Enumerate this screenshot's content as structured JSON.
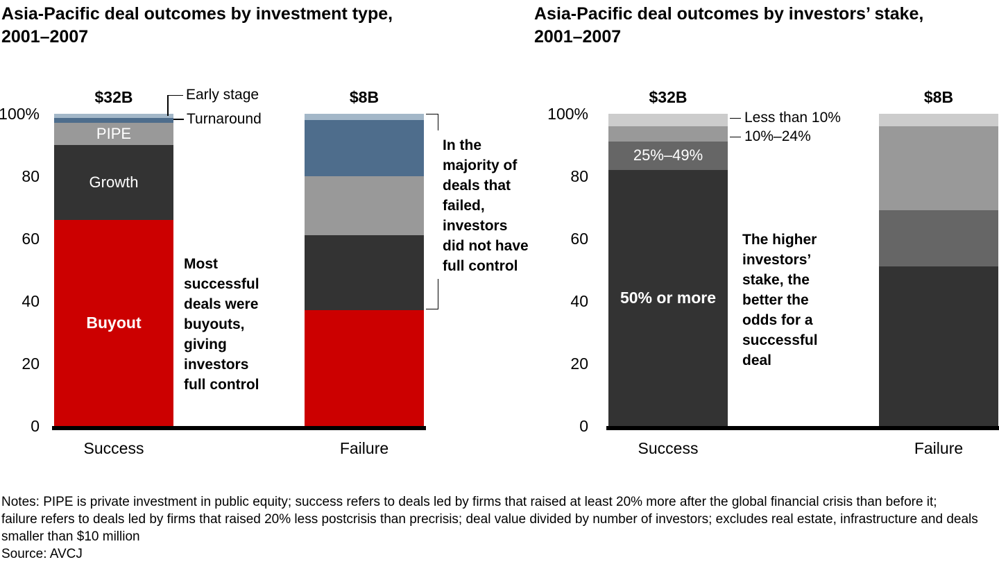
{
  "figure": {
    "notes": "Notes: PIPE is private investment in public equity; success refers to deals led by firms that raised at least 20% more after the global financial crisis than before it; failure refers to deals led by firms that raised 20% less postcrisis than precrisis; deal value divided by number of investors; excludes real estate, infrastructure and deals smaller than $10 million",
    "notes_lines": [
      "Notes: PIPE is private investment in public equity; success refers to deals led by firms that raised at least 20% more after the global financial crisis than before it;",
      "failure refers to deals led by firms that raised 20% less postcrisis than precrisis; deal value divided by number of investors; excludes real estate, infrastructure and deals",
      "smaller than $10 million"
    ],
    "source": "Source: AVCJ"
  },
  "chart_data": [
    {
      "type": "bar",
      "stacked": true,
      "title": "Asia-Pacific deal outcomes by investment type, 2001–2007",
      "title_lines": [
        "Asia-Pacific deal outcomes by investment type,",
        "2001–2007"
      ],
      "categories": [
        "Success",
        "Failure"
      ],
      "bar_value_labels": [
        "$32B",
        "$8B"
      ],
      "ylim": [
        0,
        100
      ],
      "ytick_labels": [
        "100%",
        "80",
        "60",
        "40",
        "20",
        "0"
      ],
      "ytick_values": [
        100,
        80,
        60,
        40,
        20,
        0
      ],
      "grid": false,
      "legend_position": "in-bar and callouts",
      "series": [
        {
          "name": "Buyout",
          "color": "#CC0000",
          "values": [
            66,
            37
          ],
          "label_in_bar": {
            "bar": 0,
            "bold": true
          }
        },
        {
          "name": "Growth",
          "color": "#333333",
          "values": [
            24,
            24
          ],
          "label_in_bar": {
            "bar": 0,
            "bold": false
          }
        },
        {
          "name": "PIPE",
          "color": "#999999",
          "values": [
            7,
            19
          ],
          "label_in_bar": {
            "bar": 0,
            "bold": false
          }
        },
        {
          "name": "Turnaround",
          "color": "#4E6D8C",
          "values": [
            1.5,
            18
          ]
        },
        {
          "name": "Early stage",
          "color": "#A3B7C8",
          "values": [
            1.5,
            2
          ]
        }
      ],
      "annotations": [
        {
          "text": "Most successful deals were buyouts, giving investors full control",
          "lines": [
            "Most",
            "successful",
            "deals were",
            "buyouts,",
            "giving",
            "investors",
            "full control"
          ]
        },
        {
          "text": "In the majority of deals that failed, investors did not have full control",
          "lines": [
            "In the",
            "majority of",
            "deals that",
            "failed,",
            "investors",
            "did not have",
            "full control"
          ]
        }
      ]
    },
    {
      "type": "bar",
      "stacked": true,
      "title": "Asia-Pacific deal outcomes by investors’ stake, 2001–2007",
      "title_lines": [
        "Asia-Pacific deal outcomes by investors’ stake,",
        "2001–2007"
      ],
      "categories": [
        "Success",
        "Failure"
      ],
      "bar_value_labels": [
        "$32B",
        "$8B"
      ],
      "ylim": [
        0,
        100
      ],
      "ytick_labels": [
        "100%",
        "80",
        "60",
        "40",
        "20",
        "0"
      ],
      "ytick_values": [
        100,
        80,
        60,
        40,
        20,
        0
      ],
      "grid": false,
      "legend_position": "in-bar and callouts",
      "series": [
        {
          "name": "50% or more",
          "color": "#333333",
          "values": [
            82,
            51
          ],
          "label_in_bar": {
            "bar": 0,
            "bold": true
          }
        },
        {
          "name": "25%–49%",
          "color": "#666666",
          "values": [
            9,
            18
          ],
          "label_in_bar": {
            "bar": 0,
            "bold": false
          }
        },
        {
          "name": "10%–24%",
          "color": "#999999",
          "values": [
            5,
            27
          ]
        },
        {
          "name": "Less than 10%",
          "color": "#CCCCCC",
          "values": [
            4,
            4
          ]
        }
      ],
      "annotations": [
        {
          "text": "The higher investors’ stake, the better the odds for a successful deal",
          "lines": [
            "The higher",
            "investors’",
            "stake, the",
            "better the",
            "odds for a",
            "successful",
            "deal"
          ]
        }
      ]
    }
  ]
}
